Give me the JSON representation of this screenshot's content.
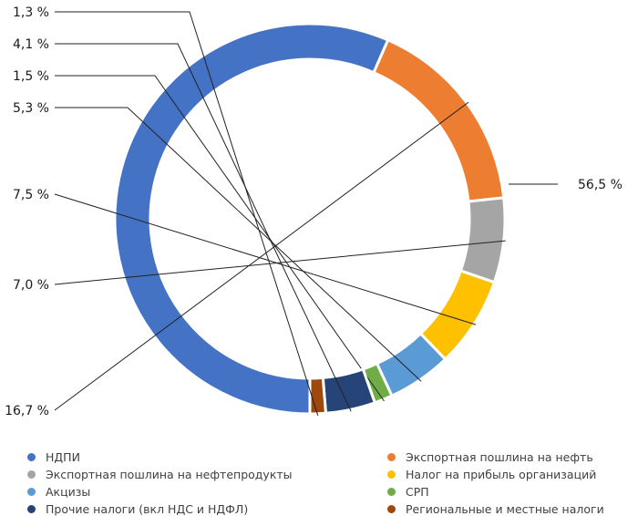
{
  "chart_data": {
    "type": "pie",
    "subtype": "donut",
    "legend_position": "bottom",
    "labels_format": "{v} %",
    "slices": [
      {
        "name": "НДПИ",
        "value": 56.5,
        "label": "56,5 %",
        "color": "#4472C4"
      },
      {
        "name": "Экспортная пошлина на нефть",
        "value": 16.7,
        "label": "16,7 %",
        "color": "#ED7D31"
      },
      {
        "name": "Экспортная пошлина на нефтепродукты",
        "value": 7.0,
        "label": "7,0 %",
        "color": "#A5A5A5"
      },
      {
        "name": "Налог на прибыль организаций",
        "value": 7.5,
        "label": "7,5 %",
        "color": "#FFC000"
      },
      {
        "name": "Акцизы",
        "value": 5.3,
        "label": "5,3 %",
        "color": "#5B9BD5"
      },
      {
        "name": "СРП",
        "value": 1.5,
        "label": "1,5 %",
        "color": "#70AD47"
      },
      {
        "name": "Прочие налоги (вкл НДС и НДФЛ)",
        "value": 4.1,
        "label": "4,1 %",
        "color": "#264478"
      },
      {
        "name": "Региональные и местные налоги",
        "value": 1.3,
        "label": "1,3 %",
        "color": "#9E480E"
      }
    ]
  }
}
